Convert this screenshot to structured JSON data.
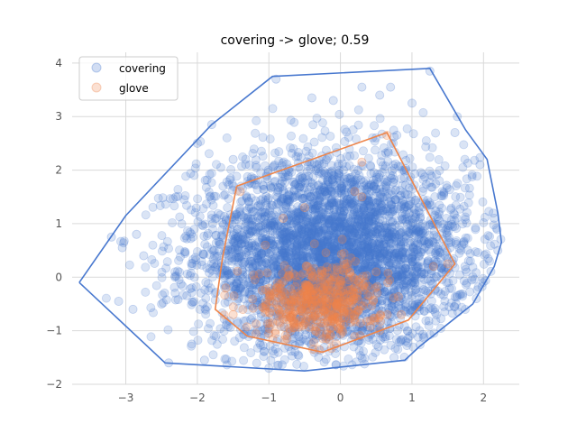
{
  "chart_data": {
    "type": "scatter",
    "title": "covering -> glove; 0.59",
    "xlabel": "",
    "ylabel": "",
    "xlim": [
      -3.75,
      2.5
    ],
    "ylim": [
      -2.0,
      4.2
    ],
    "xticks": [
      -3,
      -2,
      -1,
      0,
      1,
      2
    ],
    "yticks": [
      -2,
      -1,
      0,
      1,
      2,
      3,
      4
    ],
    "grid": true,
    "legend_position": "top-left",
    "series": [
      {
        "name": "covering",
        "color": "#4878cf",
        "marker": "circle",
        "alpha": 0.2,
        "distribution": {
          "center": [
            -0.1,
            0.45
          ],
          "spread": [
            0.95,
            0.9
          ],
          "count": 4000
        },
        "outliers": [
          [
            -3.2,
            0.75
          ],
          [
            -2.75,
            0.4
          ],
          [
            -3.05,
            0.55
          ],
          [
            -2.9,
            -0.6
          ],
          [
            -2.5,
            -0.5
          ],
          [
            -2.85,
            0.8
          ],
          [
            -3.1,
            -0.45
          ],
          [
            -2.4,
            -1.6
          ],
          [
            -2.0,
            2.5
          ],
          [
            -1.8,
            2.85
          ],
          [
            -0.9,
            3.7
          ],
          [
            0.7,
            3.55
          ],
          [
            1.0,
            3.25
          ],
          [
            1.25,
            3.85
          ],
          [
            1.6,
            2.7
          ],
          [
            1.95,
            2.1
          ],
          [
            2.15,
            1.1
          ],
          [
            2.2,
            0.5
          ],
          [
            1.9,
            -0.4
          ],
          [
            0.75,
            -1.5
          ],
          [
            -1.0,
            -1.7
          ],
          [
            -1.9,
            -1.55
          ],
          [
            -0.4,
            3.35
          ],
          [
            0.3,
            3.55
          ],
          [
            -0.1,
            3.3
          ],
          [
            0.55,
            3.4
          ],
          [
            -1.5,
            2.2
          ],
          [
            -2.3,
            1.5
          ]
        ],
        "hull": [
          [
            -3.65,
            -0.1
          ],
          [
            -3.0,
            1.15
          ],
          [
            -1.8,
            2.85
          ],
          [
            -0.95,
            3.75
          ],
          [
            1.25,
            3.9
          ],
          [
            1.75,
            2.75
          ],
          [
            2.05,
            2.2
          ],
          [
            2.2,
            1.2
          ],
          [
            2.25,
            0.65
          ],
          [
            2.15,
            0.2
          ],
          [
            1.85,
            -0.5
          ],
          [
            1.1,
            -1.3
          ],
          [
            0.9,
            -1.55
          ],
          [
            -0.5,
            -1.75
          ],
          [
            -2.45,
            -1.6
          ]
        ]
      },
      {
        "name": "glove",
        "color": "#ee854a",
        "marker": "circle",
        "alpha": 0.25,
        "distribution": {
          "center": [
            -0.3,
            -0.45
          ],
          "spread": [
            0.45,
            0.35
          ],
          "count": 500
        },
        "outliers": [
          [
            -1.4,
            1.6
          ],
          [
            0.2,
            1.6
          ],
          [
            0.65,
            2.65
          ],
          [
            0.3,
            1.5
          ],
          [
            -0.8,
            1.1
          ],
          [
            -1.05,
            0.6
          ],
          [
            1.3,
            0.2
          ],
          [
            -1.5,
            -0.7
          ],
          [
            0.85,
            -0.7
          ],
          [
            -0.3,
            -1.35
          ],
          [
            0.5,
            0.1
          ],
          [
            -0.5,
            1.3
          ],
          [
            1.5,
            0.25
          ],
          [
            -1.6,
            -0.2
          ],
          [
            0.3,
            2.15
          ]
        ],
        "hull": [
          [
            -1.45,
            1.7
          ],
          [
            0.65,
            2.7
          ],
          [
            1.6,
            0.25
          ],
          [
            0.95,
            -0.8
          ],
          [
            -0.25,
            -1.4
          ],
          [
            -1.3,
            -1.1
          ],
          [
            -1.75,
            -0.6
          ],
          [
            -1.65,
            0.35
          ]
        ]
      }
    ]
  }
}
